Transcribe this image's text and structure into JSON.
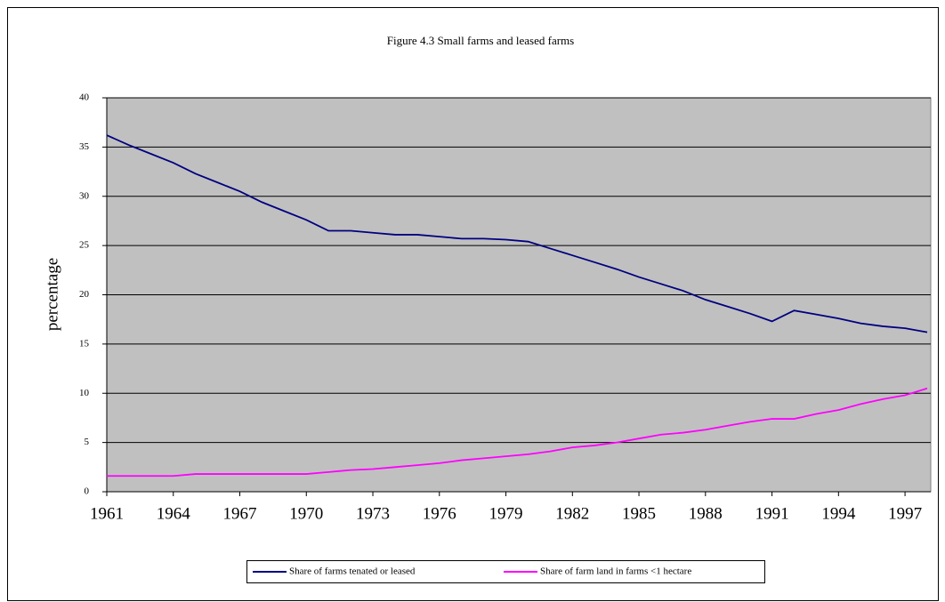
{
  "chart_data": {
    "type": "line",
    "title": "Figure 4.3 Small farms and leased farms",
    "y_label": "percentage",
    "x": [
      1961,
      1962,
      1963,
      1964,
      1965,
      1966,
      1967,
      1968,
      1969,
      1970,
      1971,
      1972,
      1973,
      1974,
      1975,
      1976,
      1977,
      1978,
      1979,
      1980,
      1981,
      1982,
      1983,
      1984,
      1985,
      1986,
      1987,
      1988,
      1989,
      1990,
      1991,
      1992,
      1993,
      1994,
      1995,
      1996,
      1997,
      1998
    ],
    "xlim": [
      1961,
      1998
    ],
    "xticks": [
      1961,
      1964,
      1967,
      1970,
      1973,
      1976,
      1979,
      1982,
      1985,
      1988,
      1991,
      1994,
      1997
    ],
    "ylim": [
      0,
      40
    ],
    "yticks": [
      0,
      5,
      10,
      15,
      20,
      25,
      30,
      35,
      40
    ],
    "grid": true,
    "legend": "bottom",
    "series": [
      {
        "name": "Share of farms tenated or leased",
        "color": "#000080",
        "values": [
          36.2,
          35.2,
          34.3,
          33.4,
          32.3,
          31.4,
          30.5,
          29.4,
          28.5,
          27.6,
          26.5,
          26.5,
          26.3,
          26.1,
          26.1,
          25.9,
          25.7,
          25.7,
          25.6,
          25.4,
          24.7,
          24.0,
          23.3,
          22.6,
          21.8,
          21.1,
          20.4,
          19.5,
          18.8,
          18.1,
          17.3,
          18.4,
          18.0,
          17.6,
          17.1,
          16.8,
          16.6,
          16.2
        ]
      },
      {
        "name": "Share of farm land in farms <1 hectare",
        "color": "#ff00ff",
        "values": [
          1.6,
          1.6,
          1.6,
          1.6,
          1.8,
          1.8,
          1.8,
          1.8,
          1.8,
          1.8,
          2.0,
          2.2,
          2.3,
          2.5,
          2.7,
          2.9,
          3.2,
          3.4,
          3.6,
          3.8,
          4.1,
          4.5,
          4.7,
          5.0,
          5.4,
          5.8,
          6.0,
          6.3,
          6.7,
          7.1,
          7.4,
          7.4,
          7.9,
          8.3,
          8.9,
          9.4,
          9.8,
          10.5
        ]
      }
    ]
  }
}
